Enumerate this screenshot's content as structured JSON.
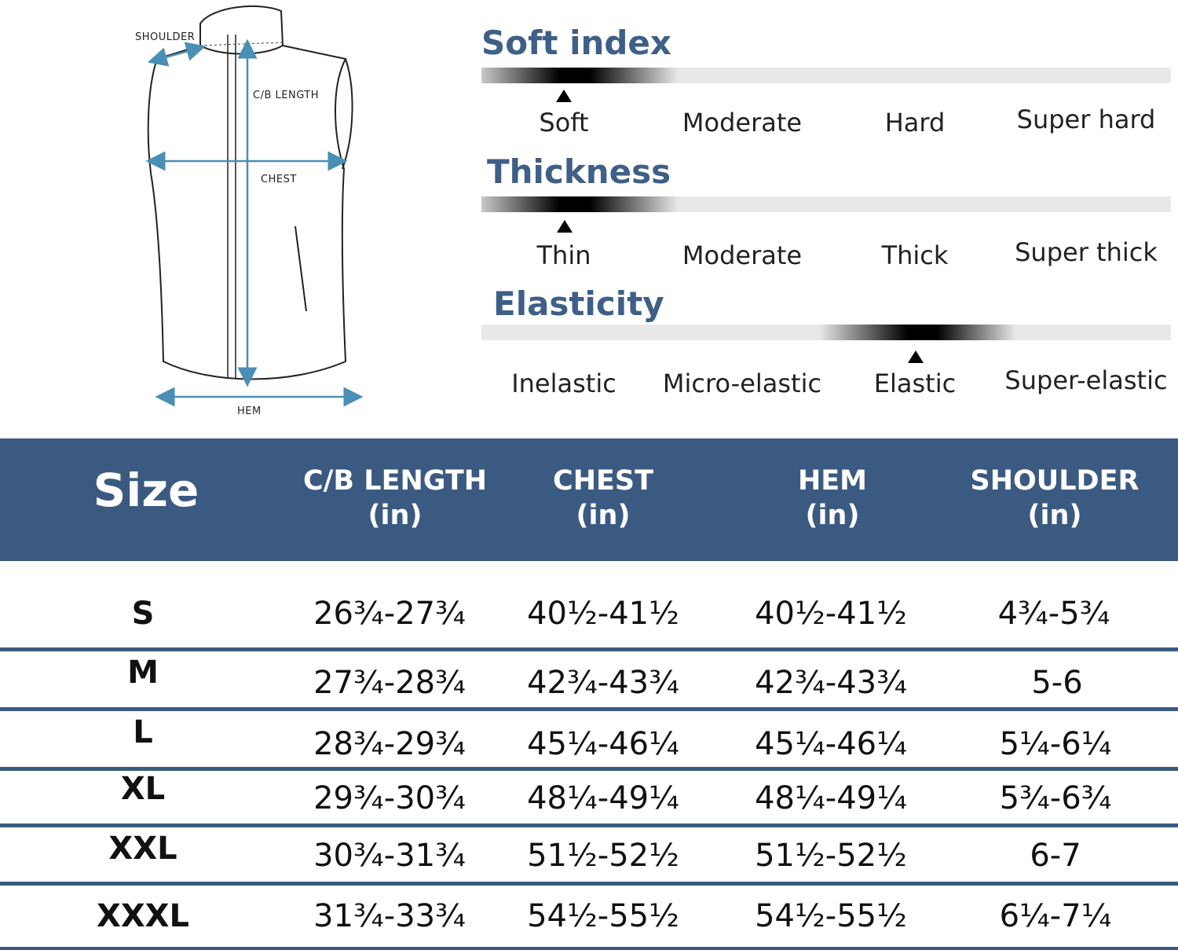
{
  "diagram": {
    "labels": {
      "shoulder": "SHOULDER",
      "cb_length": "C/B LENGTH",
      "chest": "CHEST",
      "hem": "HEM"
    },
    "arrow_color": "#4a8fb5"
  },
  "properties": [
    {
      "title": "Soft index",
      "options": [
        "Soft",
        "Moderate",
        "Hard",
        "Super hard"
      ],
      "selected": "Soft"
    },
    {
      "title": "Thickness",
      "options": [
        "Thin",
        "Moderate",
        "Thick",
        "Super thick"
      ],
      "selected": "Thin"
    },
    {
      "title": "Elasticity",
      "options": [
        "Inelastic",
        "Micro-elastic",
        "Elastic",
        "Super-elastic"
      ],
      "selected": "Elastic"
    }
  ],
  "table": {
    "header_color": "#3b5a81",
    "columns": [
      {
        "label": "Size",
        "unit": ""
      },
      {
        "label": "C/B LENGTH",
        "unit": "(in)"
      },
      {
        "label": "CHEST",
        "unit": "(in)"
      },
      {
        "label": "HEM",
        "unit": "(in)"
      },
      {
        "label": "SHOULDER",
        "unit": "(in)"
      }
    ],
    "rows": [
      [
        "S",
        "26¾-27¾",
        "40½-41½",
        "40½-41½",
        "4¾-5¾"
      ],
      [
        "M",
        "27¾-28¾",
        "42¾-43¾",
        "42¾-43¾",
        "5-6"
      ],
      [
        "L",
        "28¾-29¾",
        "45¼-46¼",
        "45¼-46¼",
        "5¼-6¼"
      ],
      [
        "XL",
        "29¾-30¾",
        "48¼-49¼",
        "48¼-49¼",
        "5¾-6¾"
      ],
      [
        "XXL",
        "30¾-31¾",
        "51½-52½",
        "51½-52½",
        "6-7"
      ],
      [
        "XXXL",
        "31¾-33¾",
        "54½-55½",
        "54½-55½",
        "6¼-7¼"
      ]
    ]
  }
}
